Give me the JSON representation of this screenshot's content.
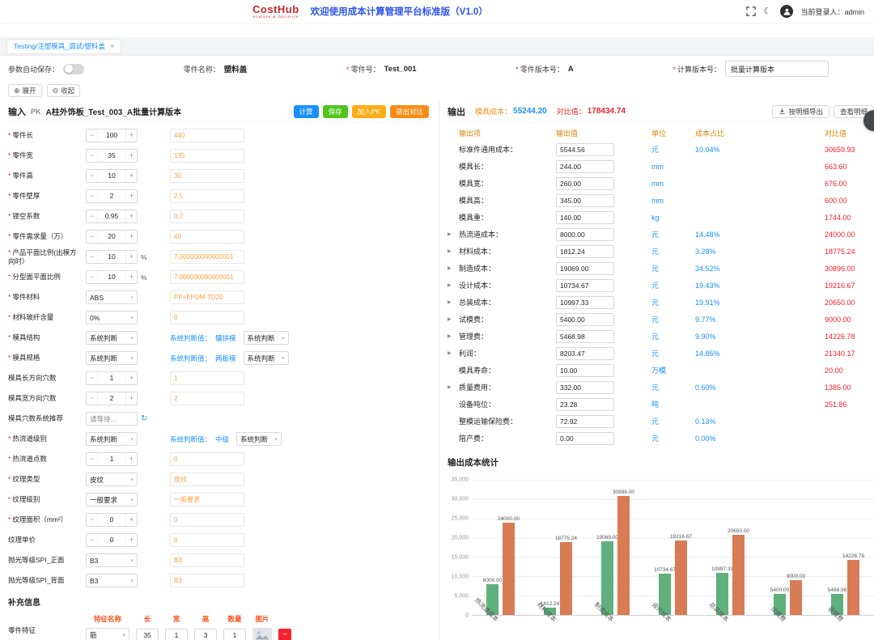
{
  "header": {
    "logo": "CostHub",
    "logo_sub": "Analyse & Optimize",
    "title": "欢迎使用成本计算管理平台标准版（V1.0）",
    "login_label": "当前登录人：",
    "login_user": "admin"
  },
  "tab": {
    "label": "Testing/注塑模具_调试/塑料盖"
  },
  "param_bar": {
    "auto_save_label": "参数自动保存：",
    "fields": [
      {
        "required": false,
        "label": "零件名称：",
        "value": "塑料盖"
      },
      {
        "required": true,
        "label": "零件号：",
        "value": "Test_001"
      },
      {
        "required": true,
        "label": "零件版本号：",
        "value": "A"
      },
      {
        "required": true,
        "label": "计算版本号：",
        "value": "批量计算版本"
      }
    ],
    "expand_label": "展开",
    "collapse_label": "收起"
  },
  "input_panel": {
    "title": "输入",
    "pk_badge": "PK",
    "subtitle": "A柱外饰板_Test_003_A批量计算版本",
    "buttons": {
      "calc": "计算",
      "save": "保存",
      "add_pk": "加入PK",
      "exit_compare": "退出对比"
    },
    "rows": [
      {
        "required": true,
        "label": "零件长",
        "control": "stepper",
        "value": "100",
        "compare": "440"
      },
      {
        "required": true,
        "label": "零件宽",
        "control": "stepper",
        "value": "35",
        "compare": "135"
      },
      {
        "required": true,
        "label": "零件高",
        "control": "stepper",
        "value": "10",
        "compare": "30"
      },
      {
        "required": true,
        "label": "零件壁厚",
        "control": "stepper",
        "value": "2",
        "compare": "2.5"
      },
      {
        "required": true,
        "label": "镂空系数",
        "control": "stepper",
        "value": "0.95",
        "compare": "0.7"
      },
      {
        "required": true,
        "label": "零件需求量（万）",
        "control": "stepper",
        "value": "20",
        "compare": "40"
      },
      {
        "required": true,
        "label": "产品平面比例(出模方向时）",
        "control": "stepper",
        "value": "10",
        "suffix": "%",
        "compare": "7.000000000000001"
      },
      {
        "required": true,
        "label": "分型面平面比例",
        "control": "stepper",
        "value": "10",
        "suffix": "%",
        "compare": "7.000000000000001"
      },
      {
        "required": true,
        "label": "零件材料",
        "control": "select",
        "value": "ABS",
        "compare": "PP+EPDM-TD20"
      },
      {
        "required": true,
        "label": "材料玻纤含量",
        "control": "select",
        "value": "0%",
        "compare": "0"
      },
      {
        "required": true,
        "label": "模具结构",
        "control": "select",
        "value": "系统判断",
        "sys_label": "系统判断值：",
        "sys_value": "镶拼模",
        "compare_select": "系统判断"
      },
      {
        "required": true,
        "label": "模具规格",
        "control": "select",
        "value": "系统判断",
        "sys_label": "系统判断值：",
        "sys_value": "两板模",
        "compare_select": "系统判断"
      },
      {
        "required": false,
        "label": "模具长方向穴数",
        "control": "stepper",
        "value": "1",
        "compare": "1"
      },
      {
        "required": false,
        "label": "模具宽方向穴数",
        "control": "stepper",
        "value": "2",
        "compare": "2"
      },
      {
        "required": false,
        "label": "模具穴数系统推荐",
        "control": "input",
        "value": "请等待...",
        "icon": "refresh"
      },
      {
        "required": true,
        "label": "热流道级别",
        "control": "select",
        "value": "系统判断",
        "sys_label": "系统判断值：",
        "sys_value": "中级",
        "compare_select": "系统判断"
      },
      {
        "required": true,
        "label": "热流道点数",
        "control": "stepper",
        "value": "1",
        "compare": "0"
      },
      {
        "required": true,
        "label": "纹理类型",
        "control": "select",
        "value": "皮纹",
        "compare": "皮纹"
      },
      {
        "required": true,
        "label": "纹理级别",
        "control": "select",
        "value": "一般要求",
        "compare": "一般要求"
      },
      {
        "required": true,
        "label": "纹理面积（mm²）",
        "control": "stepper",
        "value": "0",
        "compare": "0"
      },
      {
        "required": false,
        "label": "纹理单价",
        "control": "stepper",
        "value": "0",
        "compare": "0"
      },
      {
        "required": false,
        "label": "抛光等级SPI_正面",
        "control": "select",
        "value": "B3",
        "compare": "B3"
      },
      {
        "required": false,
        "label": "抛光等级SPI_背面",
        "control": "select",
        "value": "B3",
        "compare": "B3"
      }
    ],
    "supplement": {
      "title": "补充信息",
      "feature_label": "零件特征",
      "headers": [
        "特征名称",
        "长",
        "宽",
        "高",
        "数量",
        "图片"
      ],
      "row": {
        "name": "筋",
        "length": "35",
        "width": "1",
        "height": "3",
        "qty": "1"
      }
    }
  },
  "output_panel": {
    "title": "输出",
    "cost_label": "模具成本：",
    "cost_value": "55244.20",
    "compare_label": "对比值：",
    "compare_value": "178434.74",
    "export_button": "按明细导出",
    "detail_button": "查看明细",
    "table_headers": [
      "输出项",
      "输出值",
      "单位",
      "成本占比",
      "对比值"
    ],
    "rows": [
      {
        "expandable": false,
        "label": "标准件通用成本：",
        "value": "5544.56",
        "unit": "元",
        "ratio": "10.04%",
        "compare": "30659.93"
      },
      {
        "expandable": false,
        "label": "模具长：",
        "value": "244.00",
        "unit": "mm",
        "ratio": "",
        "compare": "663.60"
      },
      {
        "expandable": false,
        "label": "模具宽：",
        "value": "260.00",
        "unit": "mm",
        "ratio": "",
        "compare": "676.00"
      },
      {
        "expandable": false,
        "label": "模具高：",
        "value": "345.00",
        "unit": "mm",
        "ratio": "",
        "compare": "600.00"
      },
      {
        "expandable": false,
        "label": "模具重：",
        "value": "140.00",
        "unit": "kg",
        "ratio": "",
        "compare": "1744.00"
      },
      {
        "expandable": true,
        "label": "热流道成本：",
        "value": "8000.00",
        "unit": "元",
        "ratio": "14.48%",
        "compare": "24000.00"
      },
      {
        "expandable": true,
        "label": "材料成本：",
        "value": "1812.24",
        "unit": "元",
        "ratio": "3.28%",
        "compare": "18775.24"
      },
      {
        "expandable": true,
        "label": "制造成本：",
        "value": "19069.00",
        "unit": "元",
        "ratio": "34.52%",
        "compare": "30896.00"
      },
      {
        "expandable": true,
        "label": "设计成本：",
        "value": "10734.67",
        "unit": "元",
        "ratio": "19.43%",
        "compare": "19216.67"
      },
      {
        "expandable": true,
        "label": "总装成本：",
        "value": "10997.33",
        "unit": "元",
        "ratio": "19.91%",
        "compare": "20650.00"
      },
      {
        "expandable": true,
        "label": "试模费：",
        "value": "5400.00",
        "unit": "元",
        "ratio": "9.77%",
        "compare": "9000.00"
      },
      {
        "expandable": true,
        "label": "管理费：",
        "value": "5468.98",
        "unit": "元",
        "ratio": "9.90%",
        "compare": "14226.78"
      },
      {
        "expandable": true,
        "label": "利润：",
        "value": "8203.47",
        "unit": "元",
        "ratio": "14.85%",
        "compare": "21340.17"
      },
      {
        "expandable": false,
        "label": "模具寿命：",
        "value": "10.00",
        "unit": "万模",
        "ratio": "",
        "compare": "20.00"
      },
      {
        "expandable": true,
        "label": "质量费用：",
        "value": "332.00",
        "unit": "元",
        "ratio": "0.60%",
        "compare": "1385.00"
      },
      {
        "expandable": false,
        "label": "设备吨位：",
        "value": "23.28",
        "unit": "吨",
        "ratio": "",
        "compare": "251.86"
      },
      {
        "expandable": false,
        "label": "整模运输保险费：",
        "value": "72.92",
        "unit": "元",
        "ratio": "0.13%",
        "compare": ""
      },
      {
        "expandable": false,
        "label": "陪产费：",
        "value": "0.00",
        "unit": "元",
        "ratio": "0.00%",
        "compare": ""
      }
    ],
    "stats_title": "输出成本统计"
  },
  "chart_data": {
    "type": "bar",
    "title": "输出成本统计",
    "categories": [
      "热流道成本",
      "材料成本",
      "制造成本",
      "设计成本",
      "总装成本",
      "试模费",
      "管理费"
    ],
    "series": [
      {
        "name": "模具成本",
        "color": "#5fb07c",
        "values": [
          8000.0,
          1812.24,
          19069.0,
          10734.67,
          10997.33,
          5400.0,
          5468.98
        ]
      },
      {
        "name": "对比值",
        "color": "#d87c55",
        "values": [
          24000.0,
          18775.24,
          30896.0,
          19216.67,
          20650.0,
          9000.0,
          14226.78
        ]
      }
    ],
    "ylim": [
      0,
      35000
    ],
    "yticks": [
      "35,000",
      "30,000",
      "25,000",
      "20,000",
      "15,000",
      "10,000",
      "5,000",
      "0"
    ],
    "grid": true,
    "legend": false,
    "value_label_format": "2-decimals"
  },
  "icons": {
    "close": "×",
    "moon": "☾",
    "caret_down": "▾",
    "row_expand": "▶",
    "minus": "−",
    "plus": "+",
    "refresh": "↻",
    "expand": "⊕",
    "collapse": "⊖",
    "delete": "−"
  }
}
